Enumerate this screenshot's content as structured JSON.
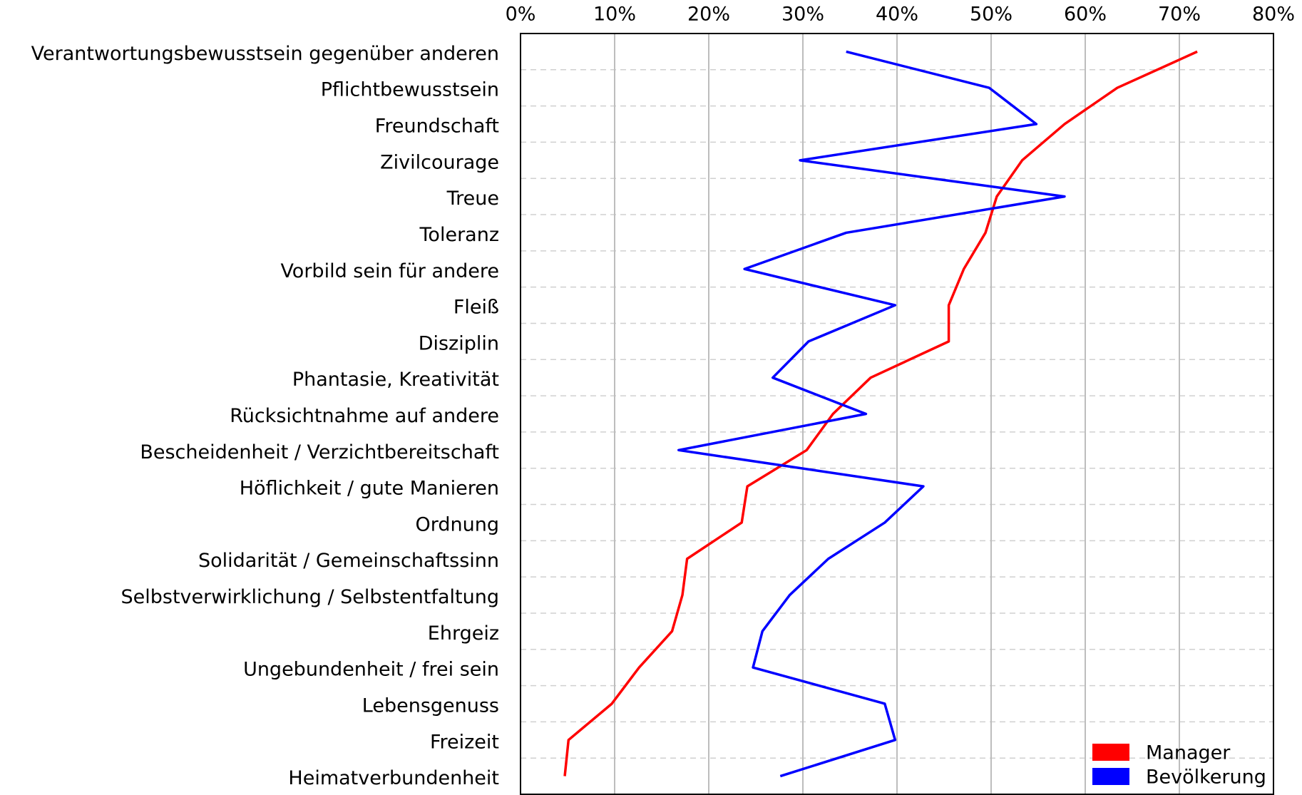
{
  "chart_data": {
    "type": "line",
    "orientation": "horizontal",
    "categories": [
      "Verantwortungsbewusstsein gegenüber anderen",
      "Pflichtbewusstsein",
      "Freundschaft",
      "Zivilcourage",
      "Treue",
      "Toleranz",
      "Vorbild sein für andere",
      "Fleiß",
      "Disziplin",
      "Phantasie, Kreativität",
      "Rücksichtnahme auf andere",
      "Bescheidenheit / Verzichtbereitschaft",
      "Höflichkeit / gute Manieren",
      "Ordnung",
      "Solidarität / Gemeinschaftssinn",
      "Selbstverwirklichung / Selbstentfaltung",
      "Ehrgeiz",
      "Ungebundenheit / frei sein",
      "Lebensgenuss",
      "Freizeit",
      "Heimatverbundenheit"
    ],
    "series": [
      {
        "name": "Manager",
        "color": "#ff0000",
        "values": [
          71.9,
          63.4,
          57.8,
          53.3,
          50.6,
          49.4,
          47.1,
          45.5,
          45.5,
          37.2,
          33.2,
          30.4,
          24.1,
          23.5,
          17.7,
          17.2,
          16.1,
          12.6,
          9.7,
          5.1,
          4.7
        ]
      },
      {
        "name": "Bevölkerung",
        "color": "#0000ff",
        "values": [
          34.6,
          49.8,
          54.8,
          29.7,
          57.8,
          34.6,
          23.8,
          39.8,
          30.6,
          26.8,
          36.7,
          16.8,
          42.8,
          38.7,
          32.7,
          28.6,
          25.7,
          24.7,
          38.7,
          39.8,
          27.6
        ]
      }
    ],
    "xlim": [
      0,
      80
    ],
    "xticks": [
      {
        "value": 0,
        "label": "0%"
      },
      {
        "value": 10,
        "label": "10%"
      },
      {
        "value": 20,
        "label": "20%"
      },
      {
        "value": 30,
        "label": "30%"
      },
      {
        "value": 40,
        "label": "40%"
      },
      {
        "value": 50,
        "label": "50%"
      },
      {
        "value": 60,
        "label": "60%"
      },
      {
        "value": 70,
        "label": "70%"
      },
      {
        "value": 80,
        "label": "80%"
      }
    ],
    "grid": true,
    "legend": "lower right"
  }
}
